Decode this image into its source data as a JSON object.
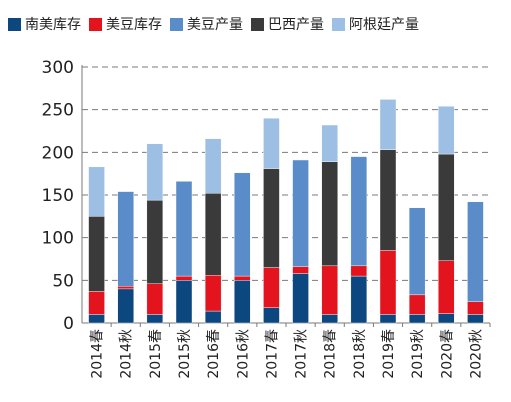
{
  "chart_data": {
    "type": "bar",
    "stacked": true,
    "categories": [
      "2014春",
      "2014秋",
      "2015春",
      "2015秋",
      "2016春",
      "2016秋",
      "2017春",
      "2017秋",
      "2018春",
      "2018秋",
      "2019春",
      "2019秋",
      "2020春",
      "2020秋"
    ],
    "series": [
      {
        "name": "南美库存",
        "color": "#0d4780",
        "values": [
          10,
          40,
          10,
          50,
          14,
          50,
          18,
          58,
          10,
          55,
          10,
          10,
          11,
          10
        ]
      },
      {
        "name": "美豆库存",
        "color": "#e3141d",
        "values": [
          27,
          3,
          36,
          5,
          42,
          5,
          47,
          8,
          57,
          12,
          75,
          23,
          62,
          15
        ]
      },
      {
        "name": "美豆产量",
        "color": "#5a8cc9",
        "values": [
          0,
          111,
          0,
          111,
          0,
          121,
          0,
          125,
          0,
          128,
          0,
          102,
          0,
          117
        ]
      },
      {
        "name": "巴西产量",
        "color": "#3a3a3a",
        "values": [
          88,
          0,
          98,
          0,
          96,
          0,
          116,
          0,
          122,
          0,
          118,
          0,
          125,
          0
        ]
      },
      {
        "name": "阿根廷产量",
        "color": "#9cbfe3",
        "values": [
          58,
          0,
          66,
          0,
          64,
          0,
          59,
          0,
          43,
          0,
          59,
          0,
          56,
          0
        ]
      }
    ],
    "ylim": [
      0,
      300
    ],
    "yticks": [
      0,
      50,
      100,
      150,
      200,
      250,
      300
    ],
    "grid": true,
    "legend_position": "top"
  }
}
